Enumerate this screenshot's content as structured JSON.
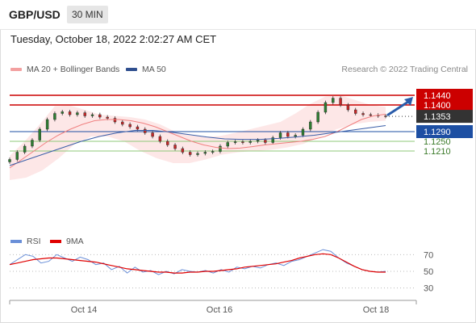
{
  "header": {
    "symbol": "GBP/USD",
    "interval": "30 MIN"
  },
  "datetime": "Tuesday, October 18, 2022 2:02:27 AM CET",
  "legend": {
    "ma20": "MA 20 + Bollinger Bands",
    "ma50": "MA 50",
    "credit": "Research © 2022 Trading Central"
  },
  "rsi_legend": {
    "rsi": "RSI",
    "ma9": "9MA"
  },
  "colors": {
    "resistance": "#cc0000",
    "support": "#1d4fa3",
    "minor_support": "#8fc97a",
    "candle_up": "#2e7d32",
    "candle_down": "#c62828",
    "band_fill": "#fde3e3",
    "ma20": "#f08080",
    "ma50": "#3a5ea8",
    "rsi": "#6a8fd8",
    "rsi_ma": "#e00000",
    "current_price_bg": "#333333",
    "arrow": "#2a5caa"
  },
  "chart_data": [
    {
      "type": "line",
      "title": "GBP/USD 30 MIN",
      "price_range": [
        1.1,
        1.15
      ],
      "x_labels": [
        "Oct 14",
        "Oct 16",
        "Oct 18"
      ],
      "series": [
        {
          "name": "MA 20 + Bollinger Bands"
        },
        {
          "name": "MA 50"
        }
      ],
      "close": [
        1.1175,
        1.1205,
        1.123,
        1.1255,
        1.13,
        1.134,
        1.1365,
        1.1372,
        1.136,
        1.1368,
        1.1355,
        1.136,
        1.135,
        1.1345,
        1.133,
        1.132,
        1.131,
        1.13,
        1.1285,
        1.127,
        1.125,
        1.1235,
        1.122,
        1.1205,
        1.1195,
        1.12,
        1.1205,
        1.1208,
        1.123,
        1.1245,
        1.1248,
        1.1245,
        1.125,
        1.1255,
        1.1245,
        1.1265,
        1.1285,
        1.127,
        1.1275,
        1.13,
        1.133,
        1.137,
        1.141,
        1.1428,
        1.14,
        1.138,
        1.1365,
        1.136,
        1.1358,
        1.1355,
        1.1353
      ],
      "ma20": [
        1.114,
        1.1175,
        1.121,
        1.1245,
        1.1275,
        1.13,
        1.132,
        1.1335,
        1.134,
        1.134,
        1.1335,
        1.1325,
        1.131,
        1.129,
        1.127,
        1.125,
        1.1235,
        1.1225,
        1.122,
        1.1222,
        1.1228,
        1.1235,
        1.124,
        1.1245,
        1.125,
        1.1258,
        1.127,
        1.129,
        1.1315,
        1.134,
        1.1355,
        1.1362
      ],
      "bb_upper": [
        1.119,
        1.125,
        1.132,
        1.1395,
        1.1398,
        1.138,
        1.136,
        1.1355,
        1.135,
        1.134,
        1.132,
        1.129,
        1.1275,
        1.1268,
        1.1272,
        1.1285,
        1.13,
        1.1315,
        1.133,
        1.1365,
        1.1405,
        1.1435,
        1.144,
        1.142,
        1.14,
        1.1392
      ],
      "bb_lower": [
        1.109,
        1.11,
        1.113,
        1.118,
        1.124,
        1.127,
        1.127,
        1.125,
        1.121,
        1.118,
        1.116,
        1.116,
        1.1175,
        1.1195,
        1.1205,
        1.121,
        1.1215,
        1.1225,
        1.124,
        1.127,
        1.13,
        1.132,
        1.133,
        1.1335
      ],
      "ma50": [
        1.115,
        1.1175,
        1.12,
        1.1225,
        1.125,
        1.127,
        1.1285,
        1.1295,
        1.1295,
        1.1288,
        1.1278,
        1.1268,
        1.126,
        1.1258,
        1.1258,
        1.1262,
        1.1268,
        1.1275,
        1.1285,
        1.1295,
        1.1305,
        1.1315
      ],
      "levels": [
        {
          "value": 1.144,
          "label": "1.1440",
          "kind": "resistance"
        },
        {
          "value": 1.14,
          "label": "1.1400",
          "kind": "resistance"
        },
        {
          "value": 1.1353,
          "label": "1.1353",
          "kind": "current"
        },
        {
          "value": 1.129,
          "label": "1.1290",
          "kind": "support"
        },
        {
          "value": 1.125,
          "label": "1.1250",
          "kind": "minor_support"
        },
        {
          "value": 1.121,
          "label": "1.1210",
          "kind": "minor_support"
        }
      ]
    },
    {
      "type": "line",
      "title": "RSI",
      "ylim": [
        20,
        80
      ],
      "y_ticks": [
        "70",
        "50",
        "30"
      ],
      "series": [
        {
          "name": "RSI",
          "values": [
            58,
            64,
            70,
            68,
            60,
            62,
            70,
            66,
            62,
            67,
            64,
            58,
            60,
            52,
            56,
            48,
            55,
            49,
            51,
            46,
            50,
            47,
            52,
            50,
            49,
            51,
            48,
            52,
            49,
            55,
            53,
            56,
            54,
            58,
            60,
            57,
            62,
            64,
            68,
            72,
            76,
            74,
            66,
            60,
            56,
            52,
            50,
            49,
            50
          ]
        },
        {
          "name": "9MA",
          "values": [
            58,
            60,
            62,
            64,
            65,
            66,
            66,
            65,
            64,
            63,
            62,
            61,
            59,
            57,
            55,
            53,
            52,
            51,
            50,
            49,
            49,
            48,
            48,
            49,
            49,
            50,
            50,
            51,
            52,
            53,
            55,
            56,
            57,
            58,
            59,
            61,
            63,
            66,
            68,
            70,
            71,
            70,
            66,
            61,
            56,
            52,
            50,
            49,
            49
          ]
        }
      ]
    }
  ]
}
